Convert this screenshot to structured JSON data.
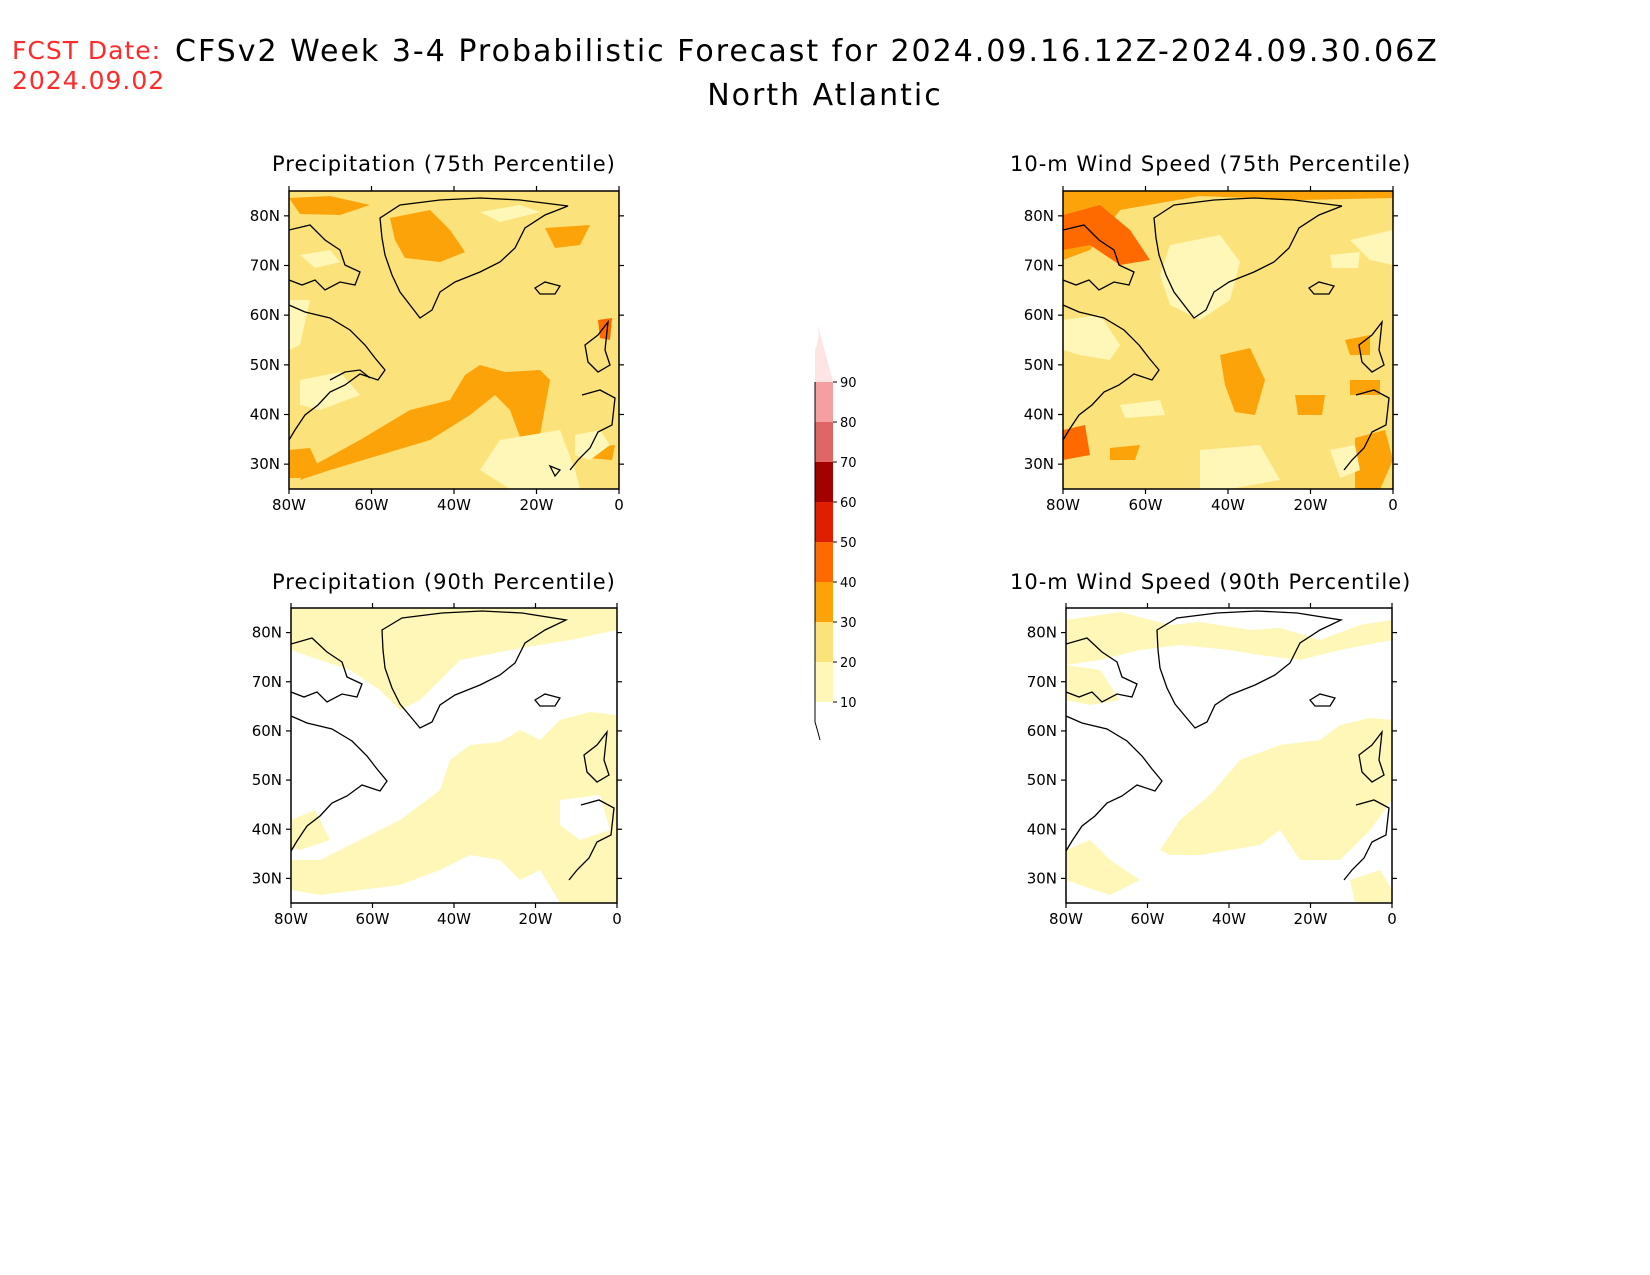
{
  "header": {
    "fcst_label": "FCST Date:",
    "fcst_date": "2024.09.02",
    "title": "CFSv2 Week 3-4 Probabilistic Forecast for 2024.09.16.12Z-2024.09.30.06Z",
    "subtitle": "North Atlantic"
  },
  "panels": [
    {
      "id": "precip75",
      "title": "Precipitation (75th Percentile)",
      "base_level": 20
    },
    {
      "id": "wind75",
      "title": "10-m Wind Speed (75th Percentile)",
      "base_level": 20
    },
    {
      "id": "precip90",
      "title": "Precipitation (90th Percentile)",
      "base_level": 0
    },
    {
      "id": "wind90",
      "title": "10-m Wind Speed (90th Percentile)",
      "base_level": 0
    }
  ],
  "axes": {
    "lat_ticks": [
      "80N",
      "70N",
      "60N",
      "50N",
      "40N",
      "30N"
    ],
    "lat_values": [
      80,
      70,
      60,
      50,
      40,
      30
    ],
    "lon_ticks": [
      "80W",
      "60W",
      "40W",
      "20W",
      "0"
    ],
    "lon_values": [
      -80,
      -60,
      -40,
      -20,
      0
    ],
    "lat_range": [
      25,
      85
    ],
    "lon_range": [
      -80,
      0
    ]
  },
  "colorbar": {
    "levels": [
      "10",
      "20",
      "30",
      "40",
      "50",
      "60",
      "70",
      "80",
      "90"
    ],
    "colors": [
      "#fff7b8",
      "#fce27a",
      "#fca30a",
      "#ff6a00",
      "#e01e00",
      "#a30000",
      "#e06666",
      "#f4a0a0",
      "#ffe4e4"
    ]
  }
}
